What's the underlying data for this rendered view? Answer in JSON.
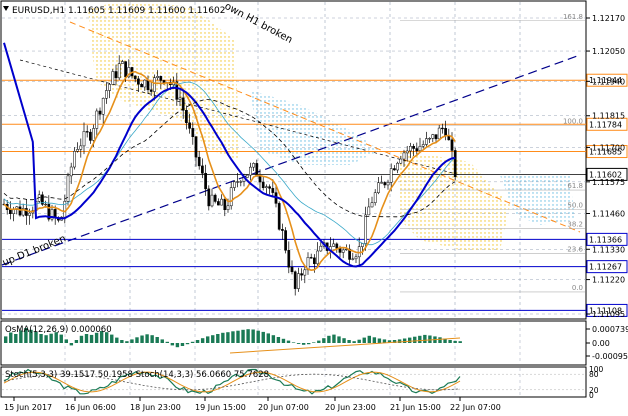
{
  "symbol_header": "EURUSD,H1  1.11605 1.11609 1.11600 1.11602",
  "annotations": {
    "trend_broken_h1": "own H1 broken",
    "trend_broken_d1": "up D1 broken"
  },
  "price_axis": {
    "ticks": [
      "1.12170",
      "1.12050",
      "1.11940",
      "1.11815",
      "1.11700",
      "1.11575",
      "1.11460",
      "1.11330",
      "1.11220",
      "1.11095"
    ],
    "ticks_at": [
      1.1217,
      1.1205,
      1.1194,
      1.11815,
      1.117,
      1.11575,
      1.1146,
      1.1133,
      1.1122,
      1.11095
    ]
  },
  "levels": [
    {
      "label": "1.11944",
      "value": 1.11944,
      "color": "#ff8c1a",
      "kind": "resistance"
    },
    {
      "label": "1.11784",
      "value": 1.11784,
      "color": "#ff8c1a",
      "kind": "resistance"
    },
    {
      "label": "1.11685",
      "value": 1.11685,
      "color": "#ff8c1a",
      "kind": "resistance"
    },
    {
      "label": "1.11602",
      "value": 1.11602,
      "color": "#000000",
      "kind": "current"
    },
    {
      "label": "1.11366",
      "value": 1.11366,
      "color": "#0000cc",
      "kind": "support"
    },
    {
      "label": "1.11267",
      "value": 1.11267,
      "color": "#0000cc",
      "kind": "support"
    },
    {
      "label": "1.11108",
      "value": 1.11108,
      "color": "#0000cc",
      "kind": "support"
    }
  ],
  "fib_labels": [
    {
      "label": "161.8",
      "value": 1.1216
    },
    {
      "label": "100.0",
      "value": 1.1178
    },
    {
      "label": "61.8",
      "value": 1.11545
    },
    {
      "label": "50.0",
      "value": 1.11475
    },
    {
      "label": "38.2",
      "value": 1.11405
    },
    {
      "label": "23.6",
      "value": 1.11315
    },
    {
      "label": "0.0",
      "value": 1.11175
    }
  ],
  "time_axis": [
    "15 Jun 2017",
    "16 Jun 06:00",
    "18 Jun 23:00",
    "19 Jun 15:00",
    "20 Jun 07:00",
    "20 Jun 23:00",
    "21 Jun 15:00",
    "22 Jun 07:00"
  ],
  "osma": {
    "label": "OsMA(12,26,9) 0.000060",
    "ticks": [
      "0.000739",
      "0.00",
      "-0.000956"
    ],
    "values": [
      0.00022,
      0.00035,
      0.0003,
      0.00042,
      0.0005,
      0.00044,
      0.00038,
      0.0003,
      0.00026,
      0.00031,
      0.00036,
      0.00028,
      0.00012,
      -8e-05,
      0.0001,
      0.00024,
      0.0003,
      0.00027,
      0.00034,
      0.0004,
      0.00036,
      0.00028,
      0.00018,
      0.0001,
      6e-05,
      0.00012,
      0.00019,
      0.00025,
      0.00029,
      0.00026,
      0.0002,
      0.00012,
      4e-05,
      -8e-05,
      -0.00014,
      -0.0001,
      -4e-05,
      4e-05,
      0.0001,
      0.00016,
      0.00022,
      0.00026,
      0.0003,
      0.00034,
      0.00036,
      0.00039,
      0.00041,
      0.00044,
      0.00046,
      0.00045,
      0.00041,
      0.00037,
      0.00032,
      0.00026,
      0.0002,
      0.00014,
      8e-05,
      2e-05,
      -3e-05,
      -6e-05,
      -4e-05,
      2e-05,
      8e-05,
      0.00016,
      0.00024,
      0.00028,
      0.00022,
      0.00016,
      0.0001,
      6e-05,
      0.00011,
      0.00018,
      0.00024,
      0.00019,
      0.00015,
      0.00012,
      9e-05,
      0.0001,
      0.00012,
      0.00015,
      0.00018,
      0.00021,
      0.00024,
      0.00027,
      0.00025,
      0.00022,
      0.00019,
      0.00015,
      0.0001,
      7e-05,
      6e-05
    ]
  },
  "stoch": {
    "label": "Stoch(5,3,3) 39.1517 50.1958  Stoch(14,3,3) 56.0660 75.7628",
    "ticks": [
      "100",
      "80",
      "20",
      "0"
    ]
  },
  "colors": {
    "price_line": "#000000",
    "blue_ma": "#0000cc",
    "orange_ma": "#e6901a",
    "cloud_yellow": "#f0c020",
    "cloud_cyan": "#60b8e0",
    "grid": "#9aa5b8",
    "bull": "#000000",
    "osma_bar": "#1a7a55"
  }
}
